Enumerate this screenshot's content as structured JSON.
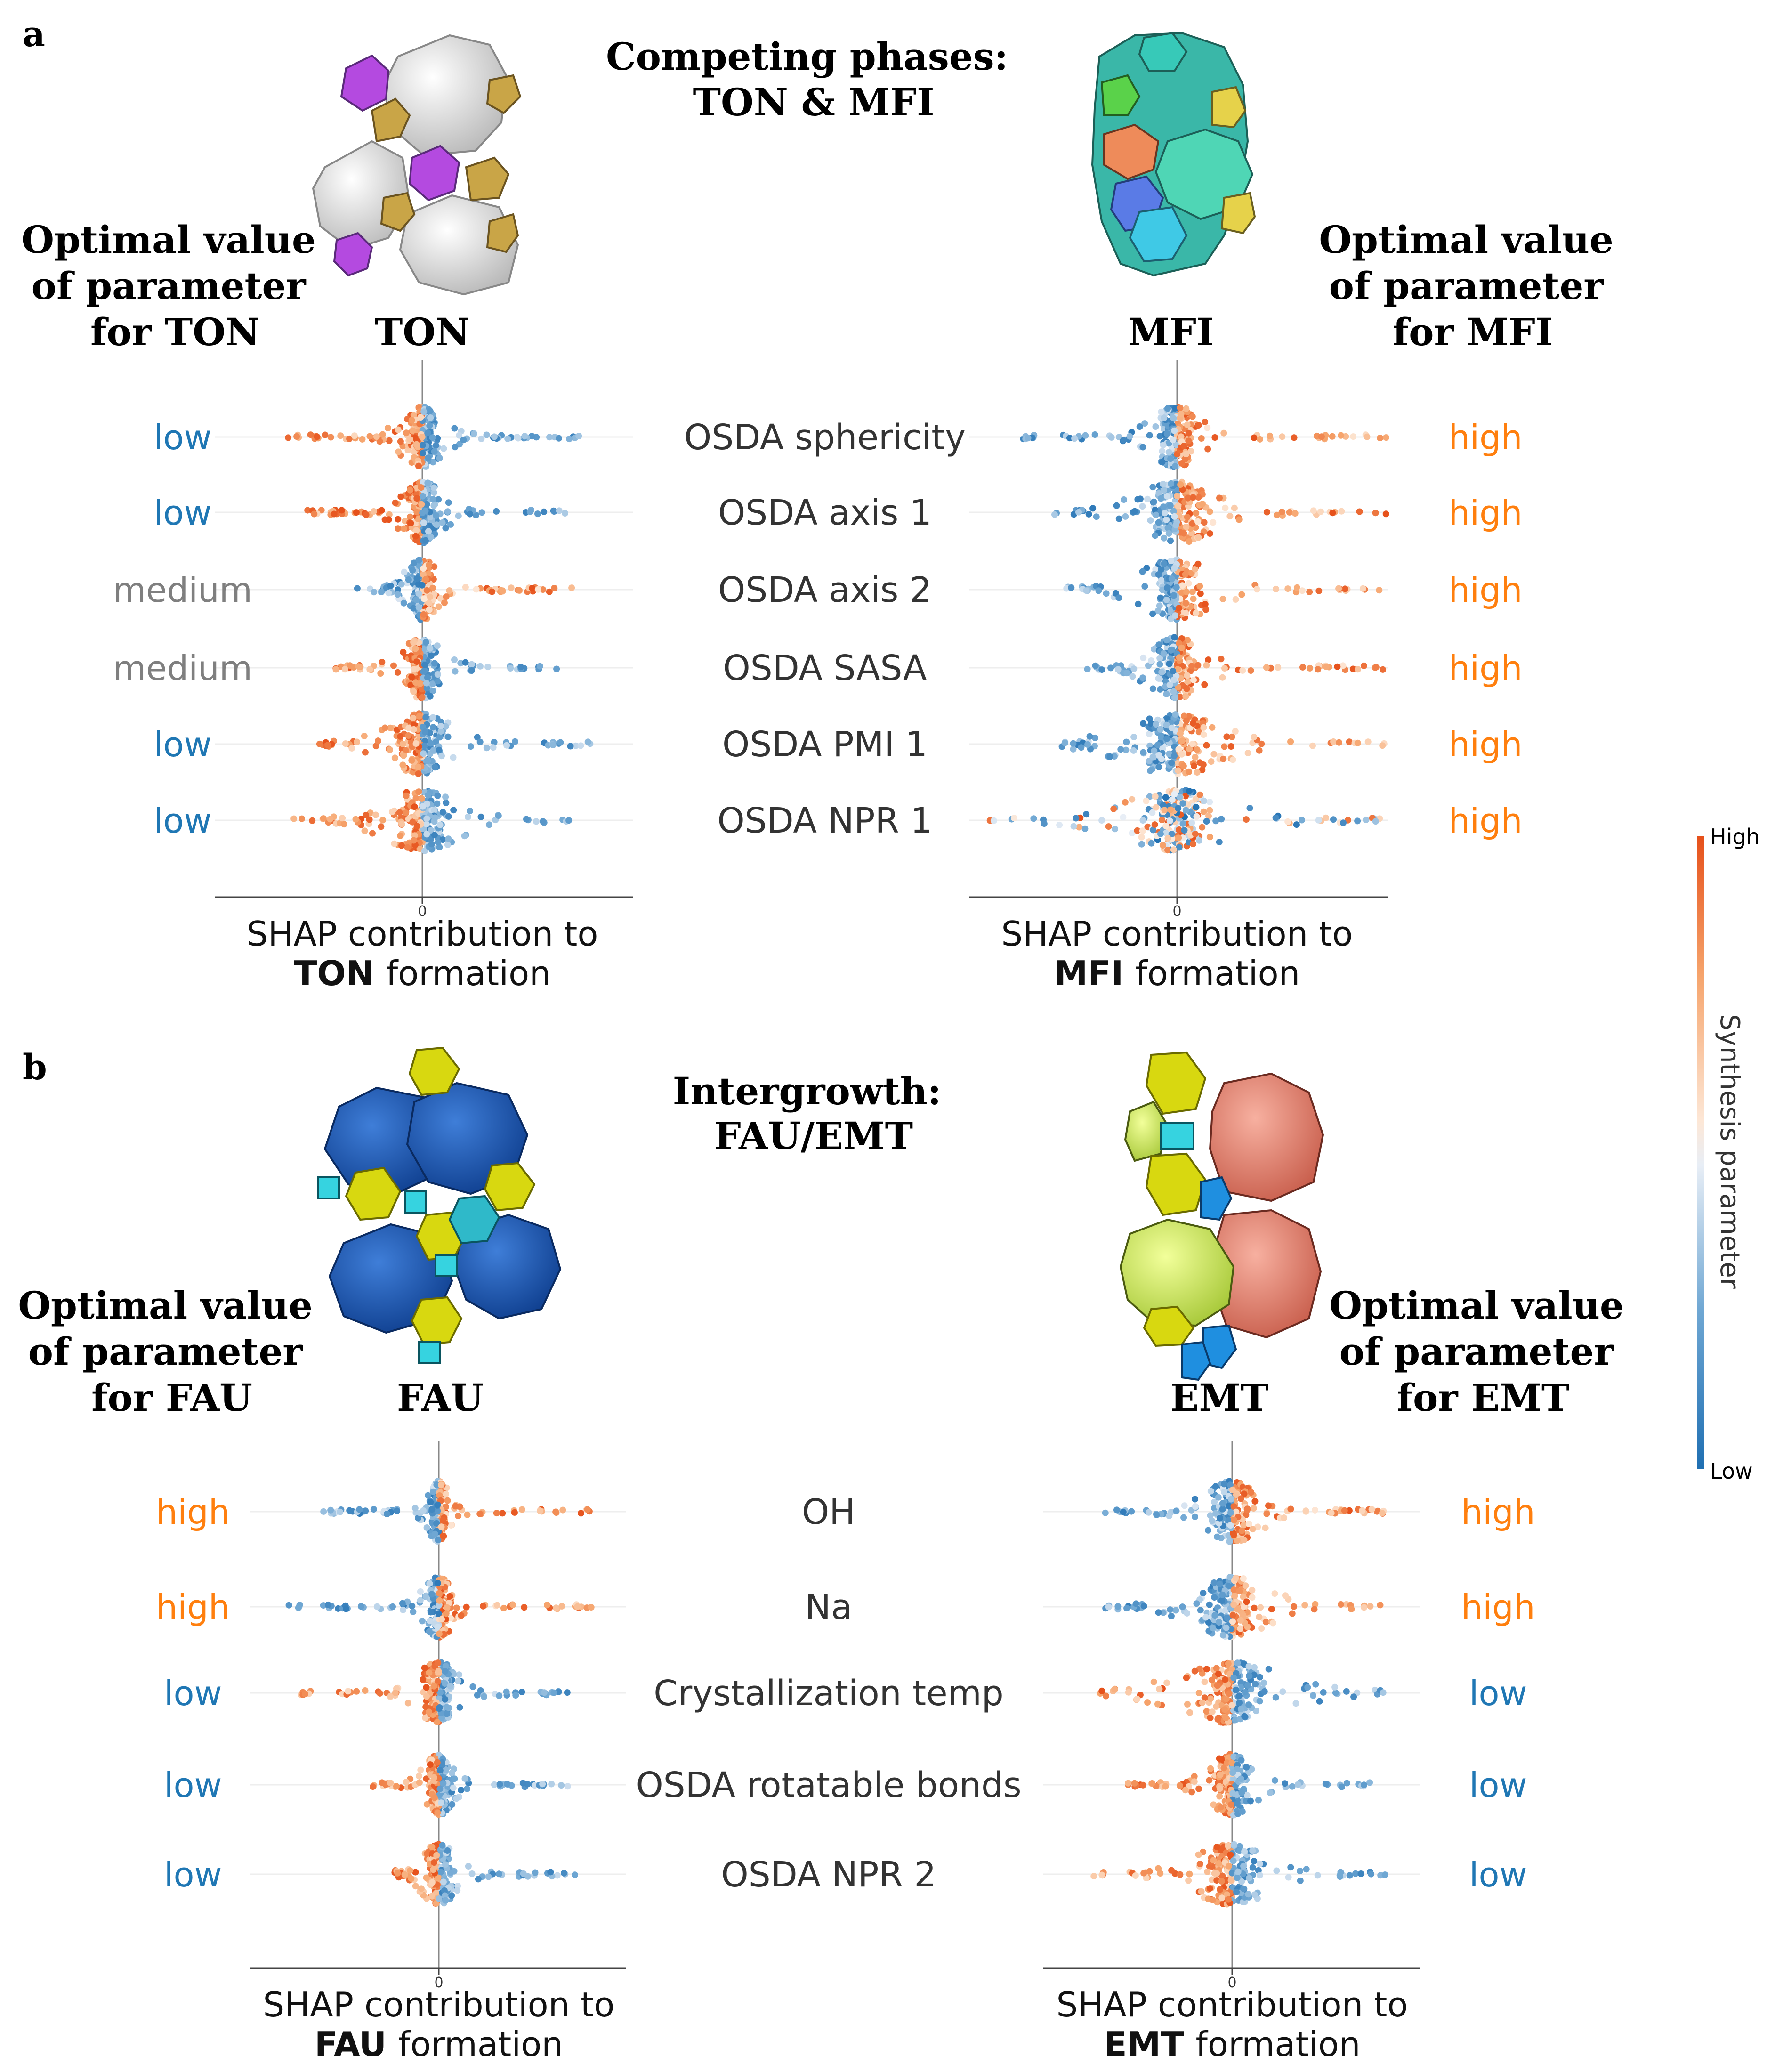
{
  "panels": [
    {
      "letter": "a",
      "title_lines": [
        "Competing phases:",
        "TON & MFI"
      ],
      "left_header_lines": [
        "Optimal value",
        "of parameter",
        "for TON"
      ],
      "right_header_lines": [
        "Optimal value",
        "of parameter",
        "for MFI"
      ],
      "left_zeolite": "TON",
      "right_zeolite": "MFI"
    },
    {
      "letter": "b",
      "title_lines": [
        "Intergrowth:",
        "FAU/EMT"
      ],
      "left_header_lines": [
        "Optimal value",
        "of parameter",
        "for FAU"
      ],
      "right_header_lines": [
        "Optimal value",
        "of parameter",
        "for EMT"
      ],
      "left_zeolite": "FAU",
      "right_zeolite": "EMT"
    }
  ],
  "colorbar": {
    "label": "Synthesis parameter",
    "high_label": "High",
    "low_label": "Low",
    "colors": [
      "#1f6fb2",
      "#6fa7d3",
      "#dfe9f3",
      "#fde7d6",
      "#f6a46c",
      "#e6501a"
    ]
  },
  "level_colors": {
    "low": "#1f77b4",
    "medium": "#7f7f7f",
    "high": "#ff7f0e"
  },
  "chart_data": [
    {
      "type": "scatter",
      "subtype": "shap-beeswarm",
      "panel": "a",
      "side": "left",
      "xlabel_prefix": "SHAP contribution to",
      "xlabel_bold": "TON",
      "xlabel_suffix": "formation",
      "zero_tick": "0",
      "features": [
        {
          "name": "OSDA sphericity",
          "optimal": "low",
          "low_side": "+",
          "xmin": -0.55,
          "xmax": 0.6,
          "core": 0.05
        },
        {
          "name": "OSDA axis 1",
          "optimal": "low",
          "low_side": "+",
          "xmin": -0.45,
          "xmax": 0.55,
          "core": 0.05
        },
        {
          "name": "OSDA axis 2",
          "optimal": "medium",
          "low_side": "-",
          "xmin": -0.25,
          "xmax": 0.6,
          "core": 0.04
        },
        {
          "name": "OSDA SASA",
          "optimal": "medium",
          "low_side": "+",
          "xmin": -0.35,
          "xmax": 0.55,
          "core": 0.05
        },
        {
          "name": "OSDA PMI 1",
          "optimal": "low",
          "low_side": "+",
          "xmin": -0.4,
          "xmax": 0.65,
          "core": 0.08
        },
        {
          "name": "OSDA NPR 1",
          "optimal": "low",
          "low_side": "+",
          "xmin": -0.5,
          "xmax": 0.6,
          "core": 0.09
        }
      ]
    },
    {
      "type": "scatter",
      "subtype": "shap-beeswarm",
      "panel": "a",
      "side": "right",
      "xlabel_prefix": "SHAP contribution to",
      "xlabel_bold": "MFI",
      "xlabel_suffix": "formation",
      "zero_tick": "0",
      "features": [
        {
          "name": "OSDA sphericity",
          "optimal": "high",
          "low_side": "-",
          "xmin": -0.6,
          "xmax": 0.8,
          "core": 0.06
        },
        {
          "name": "OSDA axis 1",
          "optimal": "high",
          "low_side": "-",
          "xmin": -0.5,
          "xmax": 0.8,
          "core": 0.1
        },
        {
          "name": "OSDA axis 2",
          "optimal": "high",
          "low_side": "-",
          "xmin": -0.45,
          "xmax": 0.8,
          "core": 0.09
        },
        {
          "name": "OSDA SASA",
          "optimal": "high",
          "low_side": "-",
          "xmin": -0.35,
          "xmax": 0.8,
          "core": 0.07
        },
        {
          "name": "OSDA PMI 1",
          "optimal": "high",
          "low_side": "-",
          "xmin": -0.45,
          "xmax": 0.8,
          "core": 0.12
        },
        {
          "name": "OSDA NPR 1",
          "optimal": "high",
          "low_side": "mix",
          "xmin": -0.75,
          "xmax": 0.8,
          "core": 0.13
        }
      ]
    },
    {
      "type": "scatter",
      "subtype": "shap-beeswarm",
      "panel": "b",
      "side": "left",
      "xlabel_prefix": "SHAP contribution to",
      "xlabel_bold": "FAU",
      "xlabel_suffix": "formation",
      "zero_tick": "0",
      "features": [
        {
          "name": "OH",
          "optimal": "high",
          "low_side": "-",
          "xmin": -0.5,
          "xmax": 0.65,
          "core": 0.03
        },
        {
          "name": "Na",
          "optimal": "high",
          "low_side": "-",
          "xmin": -0.65,
          "xmax": 0.65,
          "core": 0.04
        },
        {
          "name": "Crystallization temp",
          "optimal": "low",
          "low_side": "+",
          "xmin": -0.6,
          "xmax": 0.65,
          "core": 0.06
        },
        {
          "name": "OSDA rotatable bonds",
          "optimal": "low",
          "low_side": "+",
          "xmin": -0.3,
          "xmax": 0.55,
          "core": 0.04
        },
        {
          "name": "OSDA NPR 2",
          "optimal": "low",
          "low_side": "+",
          "xmin": -0.2,
          "xmax": 0.6,
          "core": 0.05
        }
      ]
    },
    {
      "type": "scatter",
      "subtype": "shap-beeswarm",
      "panel": "b",
      "side": "right",
      "xlabel_prefix": "SHAP contribution to",
      "xlabel_bold": "EMT",
      "xlabel_suffix": "formation",
      "zero_tick": "0",
      "features": [
        {
          "name": "OH",
          "optimal": "high",
          "low_side": "-",
          "xmin": -0.55,
          "xmax": 0.65,
          "core": 0.08
        },
        {
          "name": "Na",
          "optimal": "high",
          "low_side": "-",
          "xmin": -0.55,
          "xmax": 0.65,
          "core": 0.1
        },
        {
          "name": "Crystallization temp",
          "optimal": "low",
          "low_side": "+",
          "xmin": -0.6,
          "xmax": 0.65,
          "core": 0.14
        },
        {
          "name": "OSDA rotatable bonds",
          "optimal": "low",
          "low_side": "+",
          "xmin": -0.45,
          "xmax": 0.6,
          "core": 0.06
        },
        {
          "name": "OSDA NPR 2",
          "optimal": "low",
          "low_side": "+",
          "xmin": -0.6,
          "xmax": 0.65,
          "core": 0.1
        }
      ]
    }
  ]
}
